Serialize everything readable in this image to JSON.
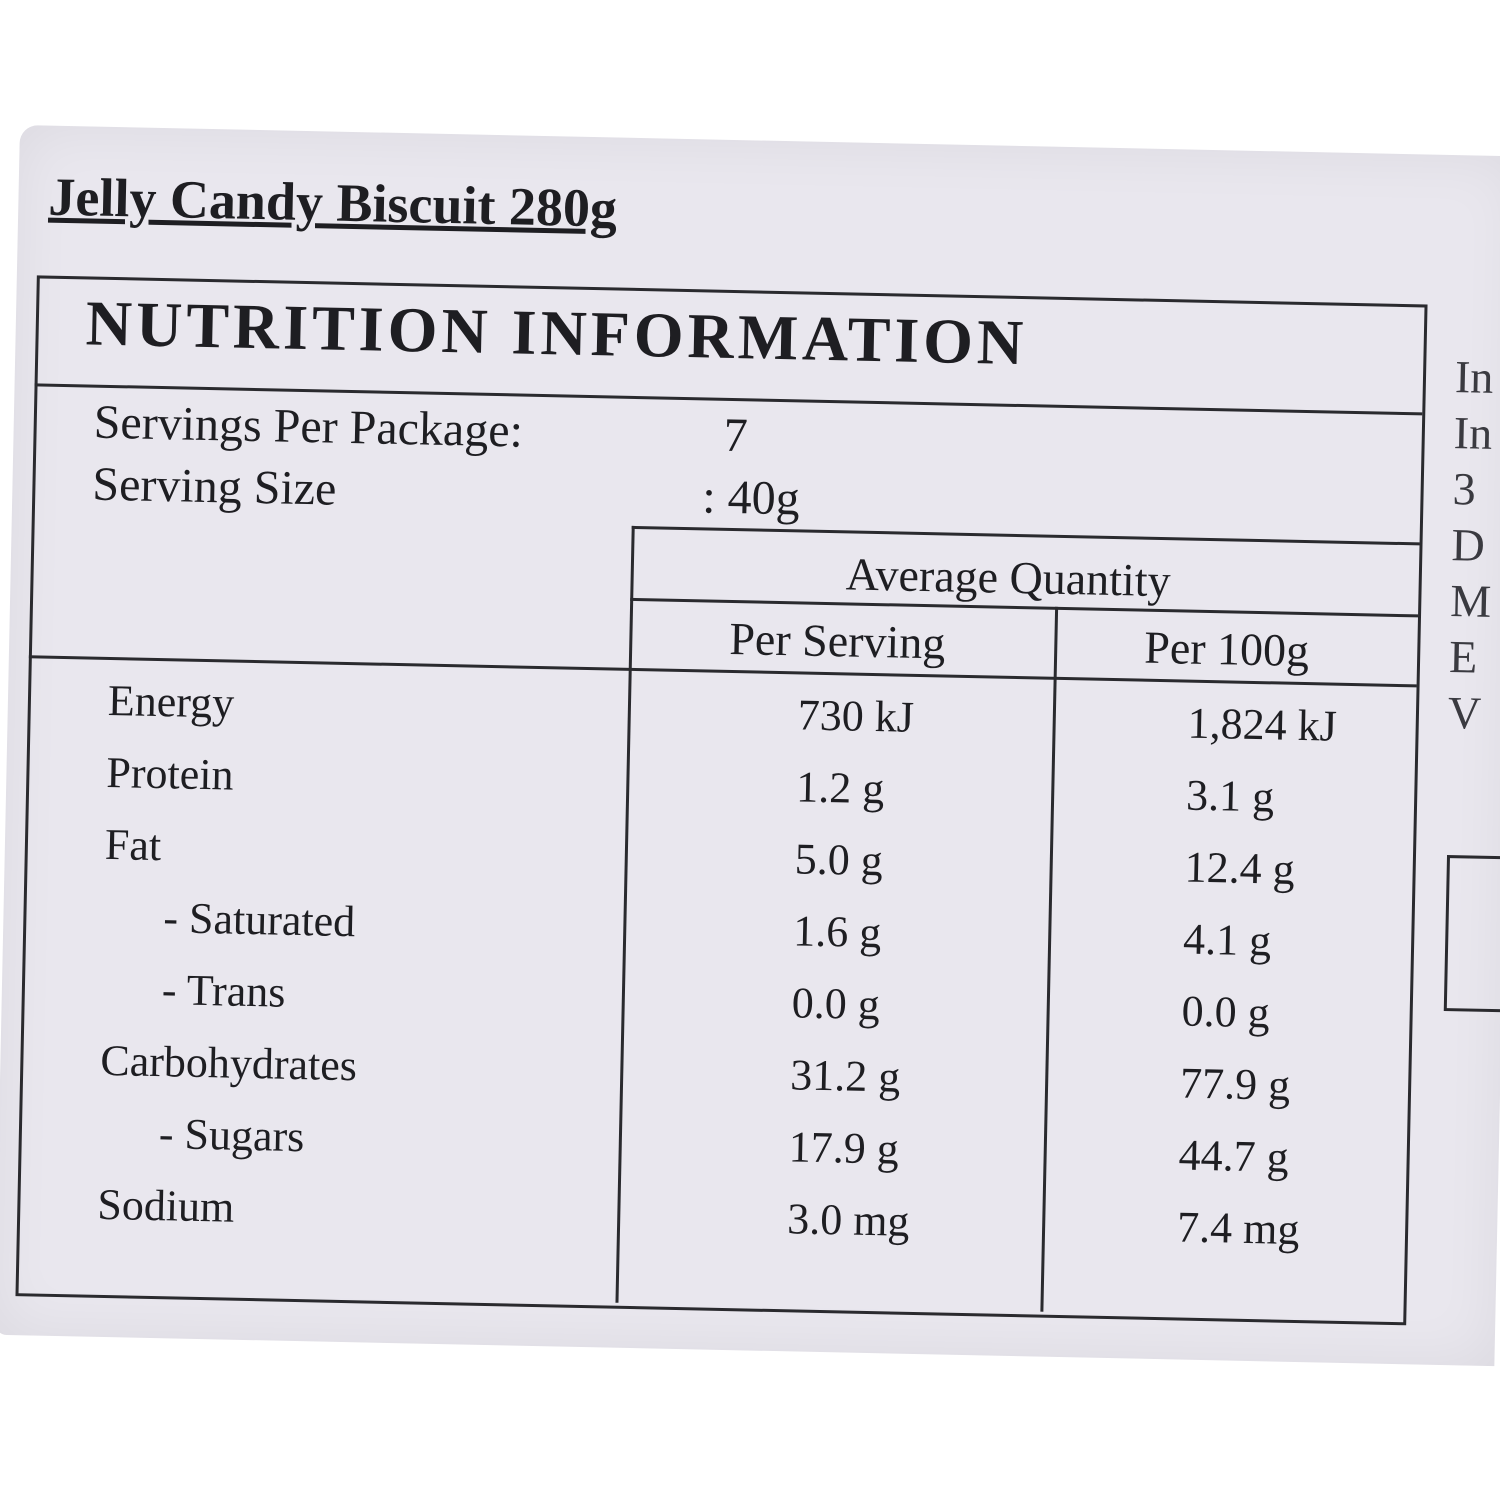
{
  "label": {
    "title": "Jelly Candy Biscuit 280g",
    "heading": "NUTRITION INFORMATION",
    "servings": [
      {
        "label": "Servings Per Package:",
        "value": "7"
      },
      {
        "label": "Serving Size",
        "value": ": 40g"
      }
    ],
    "table": {
      "group_header": "Average Quantity",
      "columns": [
        "Per Serving",
        "Per 100g"
      ],
      "rows": [
        [
          "Energy",
          "730 kJ",
          "1,824 kJ"
        ],
        [
          "Protein",
          "1.2 g",
          "3.1 g"
        ],
        [
          "Fat",
          "5.0 g",
          "12.4 g"
        ],
        [
          "- Saturated",
          "1.6 g",
          "4.1 g"
        ],
        [
          "- Trans",
          "0.0 g",
          "0.0 g"
        ],
        [
          "Carbohydrates",
          "31.2 g",
          "77.9 g"
        ],
        [
          "- Sugars",
          "17.9 g",
          "44.7 g"
        ],
        [
          "Sodium",
          "3.0 mg",
          "7.4 mg"
        ]
      ]
    },
    "side_fragments": [
      "In",
      "In",
      "3",
      "D",
      "M",
      "E",
      "V"
    ]
  }
}
